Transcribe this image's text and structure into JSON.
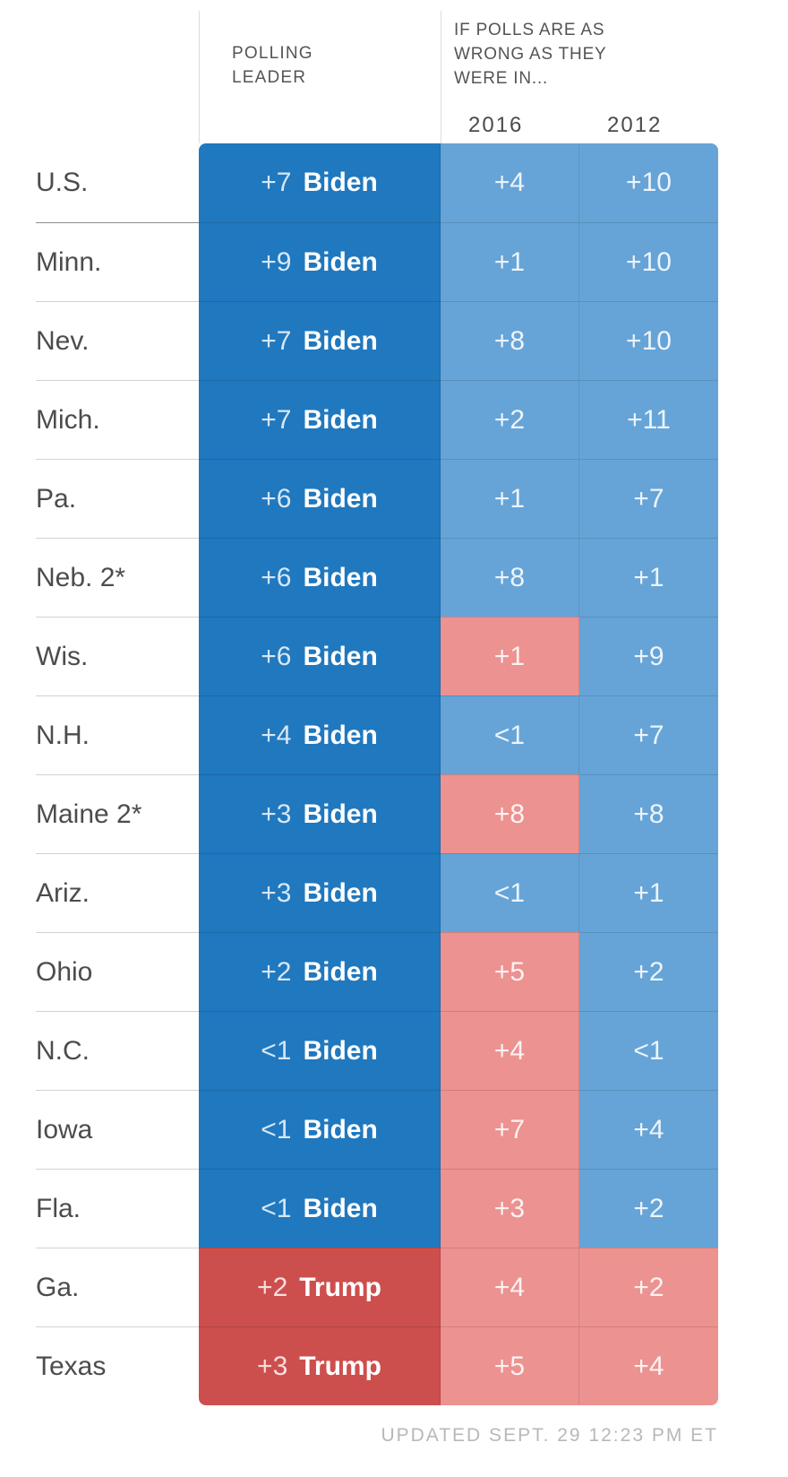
{
  "header": {
    "leader_label": "POLLING LEADER",
    "scenario_label": "IF POLLS ARE AS WRONG AS THEY WERE IN...",
    "years": [
      "2016",
      "2012"
    ]
  },
  "footer": {
    "updated": "UPDATED SEPT. 29 12:23 PM ET"
  },
  "colors": {
    "dem_strong": "#2078bf",
    "dem_light": "#66a4d7",
    "rep_strong": "#cd4f4d",
    "rep_light": "#ec9290"
  },
  "chart_data": {
    "type": "table",
    "title": "",
    "columns": [
      "POLLING LEADER",
      "2016",
      "2012"
    ],
    "scenario_group_label": "IF POLLS ARE AS WRONG AS THEY WERE IN...",
    "party_color_legend": {
      "dem": "blue cells favor Biden",
      "rep": "red cells favor Trump"
    },
    "rows": [
      {
        "state": "U.S.",
        "leader_margin": "+7",
        "leader_name": "Biden",
        "leader_party": "dem",
        "y2016": "+4",
        "y2016_party": "dem",
        "y2012": "+10",
        "y2012_party": "dem"
      },
      {
        "state": "Minn.",
        "leader_margin": "+9",
        "leader_name": "Biden",
        "leader_party": "dem",
        "y2016": "+1",
        "y2016_party": "dem",
        "y2012": "+10",
        "y2012_party": "dem"
      },
      {
        "state": "Nev.",
        "leader_margin": "+7",
        "leader_name": "Biden",
        "leader_party": "dem",
        "y2016": "+8",
        "y2016_party": "dem",
        "y2012": "+10",
        "y2012_party": "dem"
      },
      {
        "state": "Mich.",
        "leader_margin": "+7",
        "leader_name": "Biden",
        "leader_party": "dem",
        "y2016": "+2",
        "y2016_party": "dem",
        "y2012": "+11",
        "y2012_party": "dem"
      },
      {
        "state": "Pa.",
        "leader_margin": "+6",
        "leader_name": "Biden",
        "leader_party": "dem",
        "y2016": "+1",
        "y2016_party": "dem",
        "y2012": "+7",
        "y2012_party": "dem"
      },
      {
        "state": "Neb. 2*",
        "leader_margin": "+6",
        "leader_name": "Biden",
        "leader_party": "dem",
        "y2016": "+8",
        "y2016_party": "dem",
        "y2012": "+1",
        "y2012_party": "dem"
      },
      {
        "state": "Wis.",
        "leader_margin": "+6",
        "leader_name": "Biden",
        "leader_party": "dem",
        "y2016": "+1",
        "y2016_party": "rep",
        "y2012": "+9",
        "y2012_party": "dem"
      },
      {
        "state": "N.H.",
        "leader_margin": "+4",
        "leader_name": "Biden",
        "leader_party": "dem",
        "y2016": "<1",
        "y2016_party": "dem",
        "y2012": "+7",
        "y2012_party": "dem"
      },
      {
        "state": "Maine 2*",
        "leader_margin": "+3",
        "leader_name": "Biden",
        "leader_party": "dem",
        "y2016": "+8",
        "y2016_party": "rep",
        "y2012": "+8",
        "y2012_party": "dem"
      },
      {
        "state": "Ariz.",
        "leader_margin": "+3",
        "leader_name": "Biden",
        "leader_party": "dem",
        "y2016": "<1",
        "y2016_party": "dem",
        "y2012": "+1",
        "y2012_party": "dem"
      },
      {
        "state": "Ohio",
        "leader_margin": "+2",
        "leader_name": "Biden",
        "leader_party": "dem",
        "y2016": "+5",
        "y2016_party": "rep",
        "y2012": "+2",
        "y2012_party": "dem"
      },
      {
        "state": "N.C.",
        "leader_margin": "<1",
        "leader_name": "Biden",
        "leader_party": "dem",
        "y2016": "+4",
        "y2016_party": "rep",
        "y2012": "<1",
        "y2012_party": "dem"
      },
      {
        "state": "Iowa",
        "leader_margin": "<1",
        "leader_name": "Biden",
        "leader_party": "dem",
        "y2016": "+7",
        "y2016_party": "rep",
        "y2012": "+4",
        "y2012_party": "dem"
      },
      {
        "state": "Fla.",
        "leader_margin": "<1",
        "leader_name": "Biden",
        "leader_party": "dem",
        "y2016": "+3",
        "y2016_party": "rep",
        "y2012": "+2",
        "y2012_party": "dem"
      },
      {
        "state": "Ga.",
        "leader_margin": "+2",
        "leader_name": "Trump",
        "leader_party": "rep",
        "y2016": "+4",
        "y2016_party": "rep",
        "y2012": "+2",
        "y2012_party": "rep"
      },
      {
        "state": "Texas",
        "leader_margin": "+3",
        "leader_name": "Trump",
        "leader_party": "rep",
        "y2016": "+5",
        "y2016_party": "rep",
        "y2012": "+4",
        "y2012_party": "rep"
      }
    ]
  }
}
